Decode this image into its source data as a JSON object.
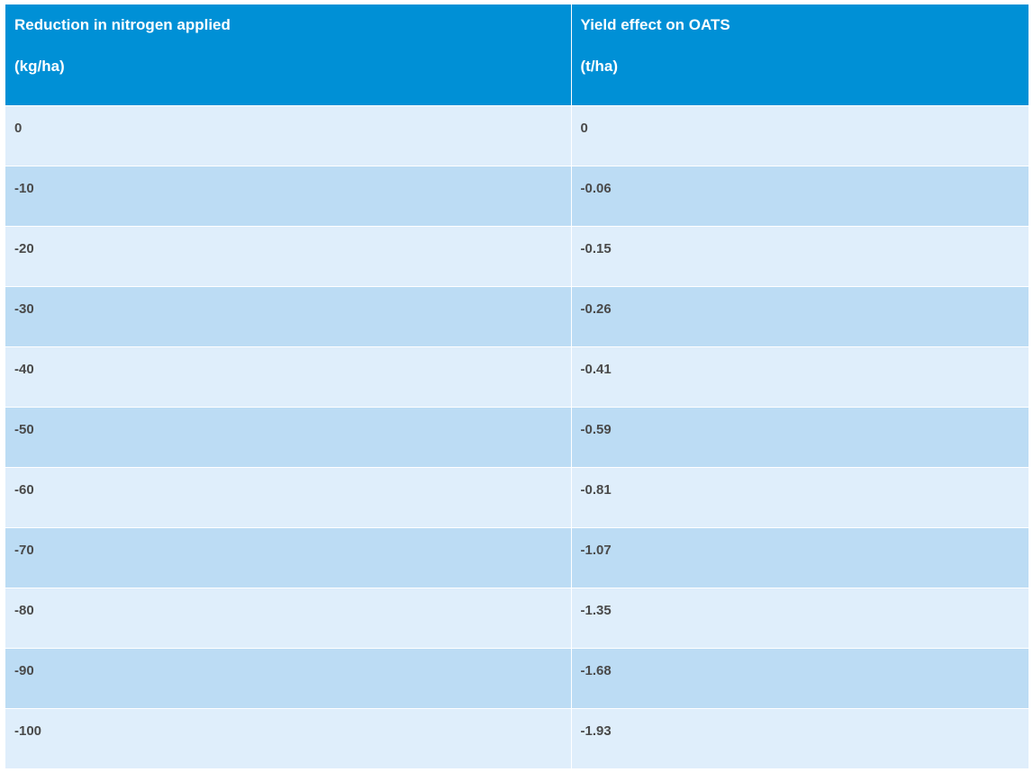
{
  "table": {
    "headers": [
      {
        "line1": "Reduction in nitrogen applied",
        "line2": "(kg/ha)"
      },
      {
        "line1": "Yield effect on OATS",
        "line2": "(t/ha)"
      }
    ],
    "rows": [
      [
        "0",
        "0"
      ],
      [
        "-10",
        "-0.06"
      ],
      [
        "-20",
        "-0.15"
      ],
      [
        "-30",
        "-0.26"
      ],
      [
        "-40",
        "-0.41"
      ],
      [
        "-50",
        "-0.59"
      ],
      [
        "-60",
        "-0.81"
      ],
      [
        "-70",
        "-1.07"
      ],
      [
        "-80",
        "-1.35"
      ],
      [
        "-90",
        "-1.68"
      ],
      [
        "-100",
        "-1.93"
      ]
    ]
  },
  "colors": {
    "header_bg": "#0090d6",
    "row_light": "#dfeefb",
    "row_dark": "#bcdcf4",
    "cell_text": "#4a4a4a"
  }
}
